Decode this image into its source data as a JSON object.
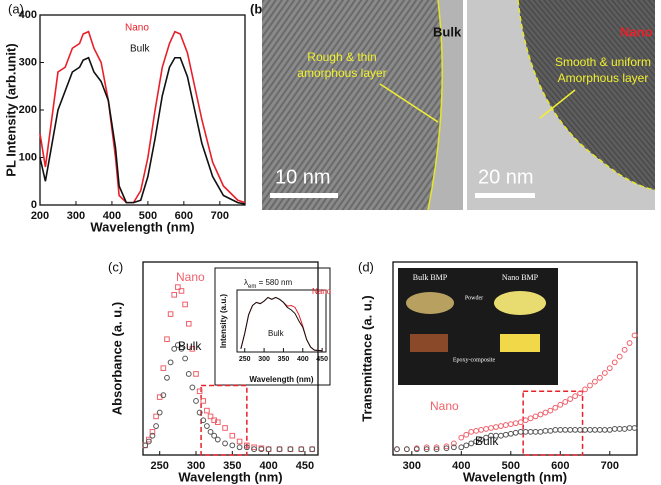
{
  "chart_data": [
    {
      "type": "line",
      "panel_label": "(a)",
      "x_label": "Wavelength (nm)",
      "y_label": "PL Intensity (arb.unit)",
      "xlim": [
        200,
        770
      ],
      "xticks": [
        200,
        300,
        400,
        500,
        600,
        700
      ],
      "ylim": [
        0,
        400
      ],
      "yticks": [
        0,
        100,
        200,
        300,
        400
      ],
      "x": [
        200,
        215,
        250,
        270,
        290,
        310,
        320,
        335,
        350,
        370,
        390,
        410,
        420,
        440,
        460,
        480,
        500,
        520,
        540,
        560,
        575,
        590,
        610,
        630,
        650,
        680,
        710,
        750,
        770
      ],
      "series": [
        {
          "name": "Nano",
          "color": "#e8202a",
          "values": [
            150,
            80,
            280,
            290,
            330,
            340,
            360,
            365,
            330,
            300,
            220,
            100,
            20,
            5,
            5,
            30,
            100,
            200,
            290,
            340,
            365,
            360,
            320,
            250,
            180,
            90,
            40,
            10,
            5
          ]
        },
        {
          "name": "Bulk",
          "color": "#111111",
          "values": [
            100,
            50,
            200,
            240,
            280,
            290,
            305,
            310,
            280,
            260,
            220,
            120,
            40,
            5,
            5,
            10,
            60,
            140,
            230,
            290,
            310,
            310,
            270,
            200,
            130,
            60,
            20,
            5,
            2
          ]
        }
      ]
    },
    {
      "type": "scatter",
      "panel_label": "(c)",
      "x_label": "Wavelength (nm)",
      "y_label": "Absorbance (a. u.)",
      "xlim": [
        227,
        468
      ],
      "xticks": [
        250,
        300,
        350,
        400,
        450
      ],
      "ylim": [
        0,
        1
      ],
      "x": [
        230,
        235,
        240,
        245,
        250,
        255,
        260,
        265,
        270,
        275,
        280,
        285,
        290,
        295,
        300,
        305,
        310,
        315,
        320,
        325,
        330,
        340,
        350,
        360,
        370,
        380,
        390,
        400,
        415,
        430,
        445,
        460
      ],
      "highlight": {
        "x": [
          307,
          370
        ],
        "y": [
          0,
          0.36
        ]
      },
      "series": [
        {
          "name": "Nano",
          "color": "#f0606a",
          "marker": "square",
          "values": [
            0.05,
            0.08,
            0.12,
            0.2,
            0.3,
            0.45,
            0.6,
            0.73,
            0.83,
            0.87,
            0.85,
            0.78,
            0.68,
            0.55,
            0.42,
            0.33,
            0.28,
            0.23,
            0.2,
            0.18,
            0.17,
            0.14,
            0.1,
            0.07,
            0.05,
            0.04,
            0.035,
            0.03,
            0.03,
            0.03,
            0.03,
            0.03
          ]
        },
        {
          "name": "Bulk",
          "color": "#555555",
          "marker": "circle",
          "values": [
            0.05,
            0.07,
            0.1,
            0.15,
            0.22,
            0.31,
            0.4,
            0.48,
            0.55,
            0.57,
            0.55,
            0.5,
            0.42,
            0.35,
            0.28,
            0.22,
            0.18,
            0.15,
            0.12,
            0.1,
            0.08,
            0.06,
            0.05,
            0.04,
            0.04,
            0.03,
            0.03,
            0.03,
            0.03,
            0.03,
            0.03,
            0.03
          ]
        }
      ]
    },
    {
      "type": "line",
      "panel_label": null,
      "x_label": "Wavelength (nm)",
      "y_label": "Intensity (a.u.)",
      "note_symbol": "λ",
      "note_sub": "em",
      "note_rest": " = 580 nm",
      "xlim": [
        230,
        460
      ],
      "xticks": [
        250,
        300,
        350,
        400,
        450
      ],
      "ylim": [
        0,
        1
      ],
      "x": [
        240,
        250,
        260,
        270,
        280,
        290,
        300,
        310,
        320,
        330,
        340,
        350,
        360,
        370,
        380,
        390,
        400,
        410,
        420,
        430,
        450
      ],
      "series": [
        {
          "name": "Nano",
          "color": "#e8202a",
          "values": [
            0.05,
            0.3,
            0.6,
            0.75,
            0.8,
            0.78,
            0.82,
            0.88,
            0.85,
            0.88,
            0.85,
            0.8,
            0.74,
            0.75,
            0.72,
            0.6,
            0.42,
            0.2,
            0.08,
            0.03,
            0.02
          ]
        },
        {
          "name": "Bulk",
          "color": "#111111",
          "values": [
            0.05,
            0.3,
            0.6,
            0.75,
            0.8,
            0.78,
            0.82,
            0.88,
            0.85,
            0.88,
            0.85,
            0.8,
            0.72,
            0.68,
            0.62,
            0.5,
            0.4,
            0.2,
            0.08,
            0.03,
            0.02
          ]
        }
      ]
    },
    {
      "type": "scatter",
      "panel_label": "(d)",
      "x_label": "Wavelength (nm)",
      "y_label": "Transmittance (a. u.)",
      "xlim": [
        262,
        755
      ],
      "xticks": [
        300,
        400,
        500,
        600,
        700
      ],
      "ylim": [
        0,
        1
      ],
      "x": [
        270,
        290,
        310,
        330,
        350,
        370,
        385,
        400,
        410,
        420,
        430,
        440,
        450,
        460,
        470,
        480,
        490,
        500,
        510,
        520,
        530,
        540,
        550,
        560,
        570,
        580,
        590,
        600,
        610,
        620,
        630,
        640,
        650,
        660,
        670,
        680,
        690,
        700,
        710,
        720,
        730,
        740,
        750
      ],
      "highlight": {
        "x": [
          525,
          645
        ],
        "y": [
          0,
          0.33
        ]
      },
      "images": {
        "left": "Bulk BMP",
        "right": "Nano BMP",
        "middle": "Powder",
        "bottom": "Epoxy-composite"
      },
      "series": [
        {
          "name": "Nano",
          "color": "#f0606a",
          "marker": "circle",
          "values": [
            0.03,
            0.03,
            0.035,
            0.04,
            0.04,
            0.045,
            0.06,
            0.09,
            0.105,
            0.12,
            0.125,
            0.13,
            0.135,
            0.14,
            0.145,
            0.15,
            0.155,
            0.16,
            0.165,
            0.17,
            0.18,
            0.19,
            0.2,
            0.21,
            0.22,
            0.23,
            0.245,
            0.26,
            0.275,
            0.29,
            0.305,
            0.32,
            0.34,
            0.36,
            0.38,
            0.4,
            0.425,
            0.45,
            0.48,
            0.51,
            0.545,
            0.58,
            0.62
          ]
        },
        {
          "name": "Bulk",
          "color": "#555555",
          "marker": "circle",
          "values": [
            0.03,
            0.03,
            0.03,
            0.03,
            0.03,
            0.035,
            0.04,
            0.04,
            0.05,
            0.06,
            0.07,
            0.08,
            0.09,
            0.1,
            0.1,
            0.1,
            0.105,
            0.11,
            0.115,
            0.12,
            0.12,
            0.12,
            0.12,
            0.12,
            0.125,
            0.125,
            0.13,
            0.13,
            0.13,
            0.13,
            0.13,
            0.13,
            0.13,
            0.13,
            0.13,
            0.13,
            0.13,
            0.13,
            0.135,
            0.135,
            0.135,
            0.14,
            0.14
          ]
        }
      ]
    }
  ],
  "panel_b": {
    "label": "(b)",
    "left": {
      "tag": "Bulk",
      "note": [
        "Rough & thin",
        "amorphous layer"
      ],
      "scale": "10 nm"
    },
    "right": {
      "tag": "Nano",
      "note": [
        "Smooth & uniform",
        "Amorphous layer"
      ],
      "scale": "20 nm"
    }
  }
}
